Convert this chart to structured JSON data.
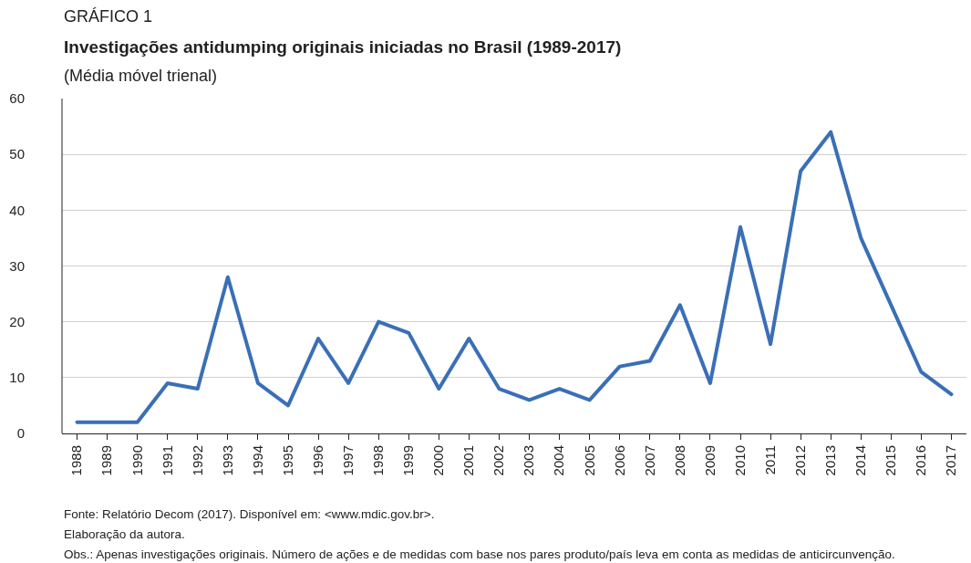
{
  "chart_data": {
    "type": "line",
    "title": "Investigações antidumping originais iniciadas no Brasil (1989-2017)",
    "subtitle": "(Média móvel trienal)",
    "annotations": [
      "GRÁFICO 1",
      "Fonte: Relatório Decom (2017). Disponível em: <www.mdic.gov.br>.",
      "Elaboração da autora.",
      "Obs.: Apenas investigações originais. Número de ações e de medidas com base nos pares produto/país leva em conta as medidas de anticircunvenção."
    ],
    "categories": [
      "1988",
      "1989",
      "1990",
      "1991",
      "1992",
      "1993",
      "1994",
      "1995",
      "1996",
      "1997",
      "1998",
      "1999",
      "2000",
      "2001",
      "2002",
      "2003",
      "2004",
      "2005",
      "2006",
      "2007",
      "2008",
      "2009",
      "2010",
      "2011",
      "2012",
      "2013",
      "2014",
      "2015",
      "2016",
      "2017"
    ],
    "series": [
      {
        "color": "#3a6fb7",
        "values": [
          2,
          2,
          2,
          9,
          8,
          28,
          9,
          5,
          17,
          9,
          20,
          18,
          8,
          17,
          8,
          6,
          8,
          6,
          12,
          13,
          23,
          9,
          37,
          16,
          47,
          54,
          35,
          23,
          11,
          7
        ]
      }
    ],
    "ylim": [
      0,
      60
    ],
    "yticks": [
      0,
      10,
      20,
      30,
      40,
      50,
      60
    ],
    "grid": "y",
    "marker": "none",
    "line_style": "solid"
  }
}
